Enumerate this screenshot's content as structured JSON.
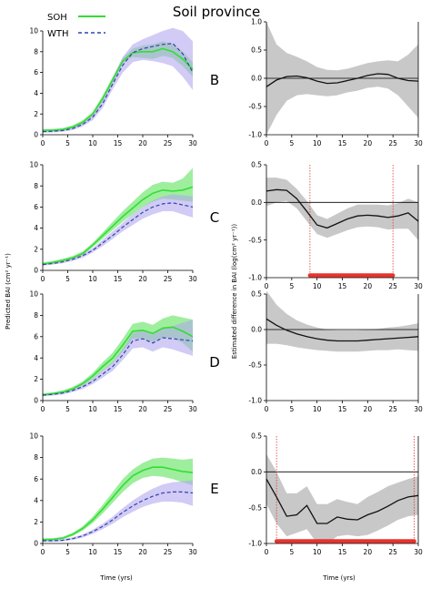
{
  "title": "Soil province",
  "legend": [
    {
      "label": "SOH",
      "color": "#33dd33",
      "style": "solid"
    },
    {
      "label": "WTH",
      "color": "#3344aa",
      "style": "dashed"
    }
  ],
  "left_ylabel": "Predicted BAI (cm² yr⁻¹)",
  "right_ylabel": "Estimated difference in BAI (log(cm² yr⁻¹))",
  "xlabel": "Time (yrs)",
  "colors": {
    "soh_line": "#33dd33",
    "soh_band": "#7de87d",
    "wth_line": "#3344aa",
    "wth_band": "#b3a8ee",
    "overlap_band": "#7fd6d0",
    "diff_band": "#c8c8c8",
    "diff_line": "#111111",
    "sig_bar": "#e8332d",
    "sig_line": "#e8332d"
  },
  "chart_data": [
    {
      "type": "line",
      "panel": "A-left",
      "xlim": [
        0,
        30
      ],
      "ylim": [
        0,
        10
      ],
      "xticks": [
        "0",
        "5",
        "10",
        "15",
        "20",
        "25",
        "30"
      ],
      "yticks": [
        "0",
        "2",
        "4",
        "6",
        "8",
        "10"
      ],
      "x": [
        0,
        2,
        4,
        6,
        8,
        10,
        12,
        14,
        16,
        18,
        20,
        22,
        24,
        26,
        28,
        30
      ],
      "series": [
        {
          "name": "SOH",
          "values": [
            0.4,
            0.42,
            0.5,
            0.75,
            1.2,
            2.0,
            3.5,
            5.3,
            7.1,
            7.9,
            8.0,
            8.0,
            8.3,
            8.0,
            7.3,
            6.3
          ],
          "lower": [
            0.3,
            0.33,
            0.4,
            0.6,
            1.0,
            1.8,
            3.2,
            5.0,
            6.9,
            7.5,
            7.4,
            7.3,
            7.6,
            7.4,
            6.6,
            5.6
          ],
          "upper": [
            0.55,
            0.57,
            0.65,
            0.9,
            1.4,
            2.2,
            3.8,
            5.6,
            7.4,
            8.3,
            8.6,
            8.7,
            9.0,
            8.7,
            8.0,
            7.0
          ]
        },
        {
          "name": "WTH",
          "values": [
            0.3,
            0.33,
            0.4,
            0.6,
            1.0,
            1.7,
            3.0,
            4.9,
            6.7,
            7.9,
            8.3,
            8.5,
            8.7,
            8.8,
            7.8,
            6.0
          ],
          "lower": [
            0.2,
            0.22,
            0.28,
            0.45,
            0.8,
            1.4,
            2.6,
            4.4,
            6.0,
            7.0,
            7.2,
            7.1,
            6.9,
            6.6,
            5.6,
            4.3
          ],
          "upper": [
            0.5,
            0.52,
            0.58,
            0.8,
            1.25,
            2.0,
            3.5,
            5.5,
            7.5,
            8.7,
            9.2,
            9.6,
            10.0,
            10.3,
            10.0,
            9.0
          ]
        }
      ]
    },
    {
      "type": "line",
      "panel": "B",
      "xlim": [
        0,
        30
      ],
      "ylim": [
        -1.0,
        1.0
      ],
      "xticks": [
        "0",
        "5",
        "10",
        "15",
        "20",
        "25",
        "30"
      ],
      "yticks": [
        "-1.0",
        "-0.5",
        "0.0",
        "0.5",
        "1.0"
      ],
      "x": [
        0,
        2,
        4,
        6,
        8,
        10,
        12,
        14,
        16,
        18,
        20,
        22,
        24,
        26,
        28,
        30
      ],
      "series": [
        {
          "name": "",
          "values": [
            -0.15,
            -0.03,
            0.03,
            0.04,
            0.01,
            -0.05,
            -0.09,
            -0.08,
            -0.04,
            0.0,
            0.05,
            0.08,
            0.07,
            0.0,
            -0.04,
            -0.05
          ],
          "lower": [
            -1.0,
            -0.65,
            -0.4,
            -0.3,
            -0.28,
            -0.3,
            -0.32,
            -0.3,
            -0.25,
            -0.22,
            -0.17,
            -0.15,
            -0.18,
            -0.3,
            -0.5,
            -0.7
          ],
          "upper": [
            1.0,
            0.6,
            0.45,
            0.38,
            0.3,
            0.2,
            0.15,
            0.14,
            0.17,
            0.22,
            0.27,
            0.3,
            0.32,
            0.3,
            0.42,
            0.6
          ]
        }
      ],
      "significant": []
    },
    {
      "type": "line",
      "panel": "C-left",
      "xlim": [
        0,
        30
      ],
      "ylim": [
        0,
        10
      ],
      "xticks": [
        "0",
        "5",
        "10",
        "15",
        "20",
        "25",
        "30"
      ],
      "yticks": [
        "0",
        "2",
        "4",
        "6",
        "8",
        "10"
      ],
      "x": [
        0,
        2,
        4,
        6,
        8,
        10,
        12,
        14,
        16,
        18,
        20,
        22,
        24,
        26,
        28,
        30
      ],
      "series": [
        {
          "name": "SOH",
          "values": [
            0.6,
            0.75,
            0.95,
            1.2,
            1.6,
            2.4,
            3.3,
            4.2,
            5.1,
            5.9,
            6.7,
            7.3,
            7.6,
            7.5,
            7.6,
            7.9
          ],
          "lower": [
            0.5,
            0.62,
            0.82,
            1.05,
            1.45,
            2.2,
            3.0,
            3.8,
            4.6,
            5.3,
            6.0,
            6.5,
            6.8,
            6.7,
            6.6,
            6.5
          ],
          "upper": [
            0.75,
            0.9,
            1.1,
            1.35,
            1.8,
            2.6,
            3.6,
            4.6,
            5.6,
            6.5,
            7.4,
            8.1,
            8.4,
            8.3,
            8.7,
            9.7
          ]
        },
        {
          "name": "WTH",
          "values": [
            0.55,
            0.65,
            0.8,
            1.05,
            1.4,
            1.9,
            2.6,
            3.3,
            4.1,
            4.8,
            5.5,
            6.0,
            6.3,
            6.4,
            6.2,
            6.0
          ],
          "lower": [
            0.45,
            0.55,
            0.68,
            0.9,
            1.2,
            1.7,
            2.3,
            3.0,
            3.7,
            4.3,
            4.9,
            5.3,
            5.6,
            5.6,
            5.3,
            5.0
          ],
          "upper": [
            0.65,
            0.75,
            0.92,
            1.2,
            1.6,
            2.1,
            2.9,
            3.7,
            4.5,
            5.3,
            6.0,
            6.6,
            7.0,
            7.2,
            7.1,
            7.0
          ]
        }
      ]
    },
    {
      "type": "line",
      "panel": "C",
      "xlim": [
        0,
        30
      ],
      "ylim": [
        -1.0,
        0.5
      ],
      "xticks": [
        "0",
        "5",
        "10",
        "15",
        "20",
        "25",
        "30"
      ],
      "yticks": [
        "-1.0",
        "-0.5",
        "0.0",
        "0.5"
      ],
      "x": [
        0,
        2,
        4,
        6,
        8,
        10,
        12,
        14,
        16,
        18,
        20,
        22,
        24,
        26,
        28,
        30
      ],
      "series": [
        {
          "name": "",
          "values": [
            0.15,
            0.17,
            0.16,
            0.05,
            -0.12,
            -0.3,
            -0.34,
            -0.28,
            -0.22,
            -0.18,
            -0.17,
            -0.18,
            -0.2,
            -0.18,
            -0.14,
            -0.25
          ],
          "lower": [
            -0.05,
            0.0,
            0.02,
            -0.08,
            -0.25,
            -0.42,
            -0.47,
            -0.42,
            -0.37,
            -0.33,
            -0.32,
            -0.33,
            -0.36,
            -0.35,
            -0.35,
            -0.5
          ],
          "upper": [
            0.33,
            0.33,
            0.3,
            0.18,
            0.02,
            -0.17,
            -0.22,
            -0.15,
            -0.08,
            -0.03,
            -0.03,
            -0.03,
            -0.04,
            -0.01,
            0.05,
            0.0
          ]
        }
      ],
      "significant": [
        {
          "from": 8.6,
          "to": 25.0
        }
      ]
    },
    {
      "type": "line",
      "panel": "D-left",
      "xlim": [
        0,
        30
      ],
      "ylim": [
        0,
        10
      ],
      "xticks": [
        "0",
        "5",
        "10",
        "15",
        "20",
        "25",
        "30"
      ],
      "yticks": [
        "0",
        "2",
        "4",
        "6",
        "8",
        "10"
      ],
      "x": [
        0,
        2,
        4,
        6,
        8,
        10,
        12,
        14,
        16,
        18,
        20,
        22,
        24,
        26,
        28,
        30
      ],
      "series": [
        {
          "name": "SOH",
          "values": [
            0.55,
            0.65,
            0.8,
            1.1,
            1.6,
            2.3,
            3.2,
            4.0,
            5.2,
            6.5,
            6.6,
            6.3,
            6.8,
            6.9,
            6.5,
            6.0
          ],
          "lower": [
            0.45,
            0.52,
            0.68,
            0.95,
            1.4,
            2.0,
            2.8,
            3.5,
            4.6,
            5.8,
            5.8,
            5.5,
            5.9,
            5.9,
            5.4,
            4.6
          ],
          "upper": [
            0.68,
            0.78,
            0.95,
            1.28,
            1.8,
            2.6,
            3.6,
            4.5,
            5.8,
            7.2,
            7.4,
            7.1,
            7.7,
            8.0,
            7.8,
            7.6
          ]
        },
        {
          "name": "WTH",
          "values": [
            0.5,
            0.58,
            0.7,
            0.95,
            1.3,
            1.8,
            2.5,
            3.2,
            4.3,
            5.6,
            5.8,
            5.4,
            5.9,
            5.8,
            5.7,
            5.6
          ],
          "lower": [
            0.4,
            0.47,
            0.58,
            0.8,
            1.1,
            1.55,
            2.15,
            2.8,
            3.8,
            4.9,
            5.0,
            4.6,
            5.0,
            4.8,
            4.5,
            4.2
          ],
          "upper": [
            0.62,
            0.7,
            0.84,
            1.1,
            1.5,
            2.05,
            2.85,
            3.6,
            4.8,
            6.3,
            6.6,
            6.2,
            6.8,
            7.0,
            7.3,
            7.6
          ]
        }
      ]
    },
    {
      "type": "line",
      "panel": "D",
      "xlim": [
        0,
        30
      ],
      "ylim": [
        -1.0,
        0.5
      ],
      "xticks": [
        "0",
        "5",
        "10",
        "15",
        "20",
        "25",
        "30"
      ],
      "yticks": [
        "-1.0",
        "-0.5",
        "0.0",
        "0.5"
      ],
      "x": [
        0,
        2,
        4,
        6,
        8,
        10,
        12,
        14,
        16,
        18,
        20,
        22,
        24,
        26,
        28,
        30
      ],
      "series": [
        {
          "name": "",
          "values": [
            0.15,
            0.06,
            -0.01,
            -0.06,
            -0.1,
            -0.13,
            -0.15,
            -0.16,
            -0.16,
            -0.16,
            -0.15,
            -0.14,
            -0.13,
            -0.12,
            -0.11,
            -0.1
          ],
          "lower": [
            -0.2,
            -0.2,
            -0.22,
            -0.25,
            -0.27,
            -0.29,
            -0.3,
            -0.31,
            -0.31,
            -0.31,
            -0.3,
            -0.29,
            -0.29,
            -0.28,
            -0.29,
            -0.3
          ],
          "upper": [
            0.55,
            0.35,
            0.22,
            0.13,
            0.07,
            0.03,
            0.0,
            -0.01,
            -0.01,
            -0.01,
            0.0,
            0.01,
            0.03,
            0.04,
            0.06,
            0.09
          ]
        }
      ],
      "significant": []
    },
    {
      "type": "line",
      "panel": "E-left",
      "xlim": [
        0,
        30
      ],
      "ylim": [
        0,
        10
      ],
      "xticks": [
        "0",
        "5",
        "10",
        "15",
        "20",
        "25",
        "30"
      ],
      "yticks": [
        "0",
        "2",
        "4",
        "6",
        "8",
        "10"
      ],
      "x": [
        0,
        2,
        4,
        6,
        8,
        10,
        12,
        14,
        16,
        18,
        20,
        22,
        24,
        26,
        28,
        30
      ],
      "series": [
        {
          "name": "SOH",
          "values": [
            0.35,
            0.38,
            0.5,
            0.85,
            1.4,
            2.2,
            3.2,
            4.3,
            5.4,
            6.3,
            6.8,
            7.1,
            7.1,
            6.9,
            6.7,
            6.6
          ],
          "lower": [
            0.25,
            0.28,
            0.4,
            0.7,
            1.2,
            1.9,
            2.8,
            3.8,
            4.8,
            5.6,
            6.1,
            6.3,
            6.2,
            6.0,
            5.7,
            5.4
          ],
          "upper": [
            0.5,
            0.5,
            0.62,
            1.0,
            1.6,
            2.5,
            3.6,
            4.8,
            6.0,
            6.9,
            7.5,
            7.9,
            8.0,
            7.9,
            7.8,
            7.9
          ]
        },
        {
          "name": "WTH",
          "values": [
            0.25,
            0.25,
            0.3,
            0.45,
            0.7,
            1.1,
            1.6,
            2.2,
            2.9,
            3.5,
            4.0,
            4.4,
            4.7,
            4.8,
            4.8,
            4.7
          ],
          "lower": [
            0.15,
            0.15,
            0.2,
            0.33,
            0.55,
            0.9,
            1.35,
            1.85,
            2.45,
            2.95,
            3.4,
            3.7,
            3.9,
            3.9,
            3.8,
            3.5
          ],
          "upper": [
            0.38,
            0.38,
            0.42,
            0.58,
            0.85,
            1.3,
            1.85,
            2.5,
            3.3,
            4.0,
            4.6,
            5.1,
            5.5,
            5.7,
            5.8,
            5.9
          ]
        }
      ]
    },
    {
      "type": "line",
      "panel": "E",
      "xlim": [
        0,
        30
      ],
      "ylim": [
        -1.0,
        0.5
      ],
      "xticks": [
        "0",
        "5",
        "10",
        "15",
        "20",
        "25",
        "30"
      ],
      "yticks": [
        "-1.0",
        "-0.5",
        "0.0",
        "0.5"
      ],
      "x": [
        0,
        2,
        4,
        6,
        8,
        10,
        12,
        14,
        16,
        18,
        20,
        22,
        24,
        26,
        28,
        30
      ],
      "series": [
        {
          "name": "",
          "values": [
            -0.1,
            -0.35,
            -0.62,
            -0.6,
            -0.47,
            -0.72,
            -0.72,
            -0.63,
            -0.66,
            -0.67,
            -0.6,
            -0.55,
            -0.48,
            -0.4,
            -0.35,
            -0.33
          ],
          "lower": [
            -0.45,
            -0.72,
            -0.9,
            -0.85,
            -0.8,
            -1.0,
            -1.0,
            -0.9,
            -0.88,
            -0.9,
            -0.88,
            -0.82,
            -0.75,
            -0.67,
            -0.62,
            -0.6
          ],
          "upper": [
            0.25,
            0.0,
            -0.3,
            -0.3,
            -0.2,
            -0.45,
            -0.45,
            -0.38,
            -0.42,
            -0.45,
            -0.35,
            -0.28,
            -0.2,
            -0.15,
            -0.1,
            -0.06
          ]
        }
      ],
      "significant": [
        {
          "from": 2.0,
          "to": 29.2
        }
      ]
    }
  ]
}
